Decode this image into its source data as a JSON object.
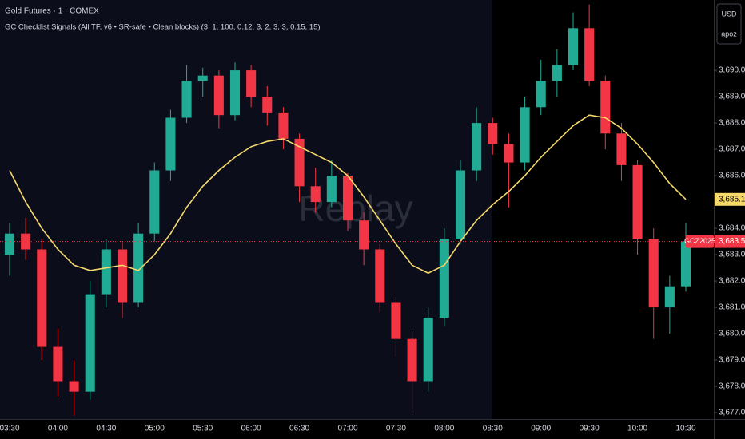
{
  "chart_data": {
    "type": "candlestick",
    "title": "Gold Futures · 1 · COMEX",
    "subtitle": "GC Checklist Signals (All TF, v6 • SR-safe • Clean blocks) (3, 1, 100, 0.12, 3, 2, 3, 3, 0.15, 15)",
    "watermark": "Replay",
    "currency": "USD",
    "scale_mode": "apoz",
    "categories": [
      "03:30",
      null,
      null,
      "04:00",
      null,
      null,
      "04:30",
      null,
      null,
      "05:00",
      null,
      null,
      "05:30",
      null,
      null,
      "06:00",
      null,
      null,
      "06:30",
      null,
      null,
      "07:00",
      null,
      null,
      "07:30",
      null,
      null,
      "08:00",
      null,
      null,
      "08:30",
      null,
      null,
      "09:00",
      null,
      null,
      "09:30",
      null,
      null,
      "10:00",
      null,
      null,
      "10:30"
    ],
    "open": [
      3683.0,
      3683.8,
      3683.2,
      3679.5,
      3678.2,
      3677.8,
      3681.5,
      3683.2,
      3681.2,
      3683.8,
      3686.2,
      3688.2,
      3689.6,
      3689.8,
      3688.3,
      3690.0,
      3689.0,
      3688.4,
      3687.4,
      3685.6,
      3685.0,
      3686.0,
      3684.3,
      3683.2,
      3681.2,
      3679.8,
      3678.2,
      3680.6,
      3683.6,
      3686.2,
      3688.0,
      3687.2,
      3686.5,
      3688.6,
      3689.6,
      3690.2,
      3691.6,
      3689.6,
      3687.6,
      3686.4,
      3683.6,
      3681.0,
      3681.8
    ],
    "high": [
      3684.2,
      3684.4,
      3683.6,
      3680.2,
      3679.0,
      3682.0,
      3683.6,
      3683.5,
      3684.2,
      3686.5,
      3688.5,
      3690.2,
      3690.1,
      3690.0,
      3690.3,
      3690.2,
      3689.4,
      3688.6,
      3687.6,
      3686.3,
      3686.6,
      3686.1,
      3684.6,
      3683.4,
      3681.4,
      3680.1,
      3681.0,
      3684.0,
      3686.6,
      3688.6,
      3688.2,
      3687.6,
      3689.0,
      3690.4,
      3690.8,
      3692.2,
      3692.5,
      3689.8,
      3688.0,
      3686.6,
      3684.0,
      3682.2,
      3684.2
    ],
    "low": [
      3682.2,
      3682.8,
      3679.0,
      3677.6,
      3676.9,
      3677.5,
      3681.0,
      3680.6,
      3681.0,
      3683.5,
      3685.8,
      3688.0,
      3689.0,
      3687.8,
      3688.1,
      3688.6,
      3687.9,
      3687.0,
      3685.0,
      3684.6,
      3684.8,
      3683.9,
      3682.6,
      3680.8,
      3679.1,
      3677.0,
      3677.8,
      3680.3,
      3683.4,
      3685.8,
      3686.8,
      3684.8,
      3686.2,
      3688.3,
      3689.0,
      3690.0,
      3689.4,
      3687.0,
      3685.8,
      3683.0,
      3679.8,
      3680.0,
      3681.6
    ],
    "close": [
      3683.8,
      3683.2,
      3679.5,
      3678.2,
      3677.8,
      3681.5,
      3683.2,
      3681.2,
      3683.8,
      3686.2,
      3688.2,
      3689.6,
      3689.8,
      3688.3,
      3690.0,
      3689.0,
      3688.4,
      3687.4,
      3685.6,
      3685.0,
      3686.0,
      3684.3,
      3683.2,
      3681.2,
      3679.8,
      3678.2,
      3680.6,
      3683.6,
      3686.2,
      3688.0,
      3687.2,
      3686.5,
      3688.6,
      3689.6,
      3690.2,
      3691.6,
      3689.6,
      3687.6,
      3686.4,
      3683.6,
      3681.0,
      3681.8,
      3683.5
    ],
    "up_color": "#22ab94",
    "down_color": "#f23645",
    "moving_average": {
      "color": "#f7d96b",
      "values": [
        3686.2,
        3685.0,
        3684.0,
        3683.2,
        3682.6,
        3682.4,
        3682.5,
        3682.6,
        3682.4,
        3683.0,
        3683.8,
        3684.8,
        3685.6,
        3686.2,
        3686.7,
        3687.1,
        3687.3,
        3687.4,
        3687.1,
        3686.8,
        3686.5,
        3686.0,
        3685.2,
        3684.3,
        3683.4,
        3682.6,
        3682.3,
        3682.6,
        3683.5,
        3684.3,
        3684.9,
        3685.4,
        3686.0,
        3686.7,
        3687.3,
        3687.9,
        3688.3,
        3688.2,
        3687.8,
        3687.2,
        3686.5,
        3685.7,
        3685.1
      ],
      "last_label": {
        "value": 3685.1,
        "label": "3,685.1"
      }
    },
    "price_line": {
      "value": 3683.5,
      "label": "3,683.5",
      "symbol": "GCZ2025",
      "color": "#f23645"
    },
    "ylim": [
      3676.76,
      3692.67
    ],
    "yticks": [
      {
        "value": 3677,
        "label": "3,677.0"
      },
      {
        "value": 3678,
        "label": "3,678.0"
      },
      {
        "value": 3679,
        "label": "3,679.0"
      },
      {
        "value": 3680,
        "label": "3,680.0"
      },
      {
        "value": 3681,
        "label": "3,681.0"
      },
      {
        "value": 3682,
        "label": "3,682.0"
      },
      {
        "value": 3683,
        "label": "3,683.0"
      },
      {
        "value": 3684,
        "label": "3,684.0"
      },
      {
        "value": 3685,
        "label": "3,685.0"
      },
      {
        "value": 3686,
        "label": "3,686.0"
      },
      {
        "value": 3687,
        "label": "3,687.0"
      },
      {
        "value": 3688,
        "label": "3,688.0"
      },
      {
        "value": 3689,
        "label": "3,689.0"
      },
      {
        "value": 3690,
        "label": "3,690.0"
      }
    ]
  }
}
